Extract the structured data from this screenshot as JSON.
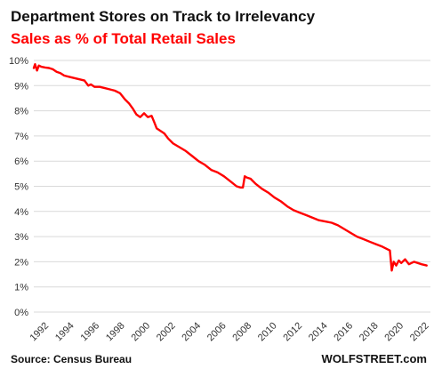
{
  "colors": {
    "line": "#ff0000",
    "grid": "#d9d9d9",
    "title": "#111111",
    "subtitle": "#ff0000"
  },
  "chart_data": {
    "type": "line",
    "title": "Department Stores on Track to Irrelevancy",
    "subtitle": "Sales as % of Total Retail Sales",
    "source": "Source: Census Bureau",
    "brand": "WOLFSTREET.com",
    "ylim": [
      0,
      10
    ],
    "xlim": [
      1992,
      2023.3
    ],
    "grid": "horizontal",
    "y_ticks": [
      {
        "value": 0,
        "label": "0%"
      },
      {
        "value": 1,
        "label": "1%"
      },
      {
        "value": 2,
        "label": "2%"
      },
      {
        "value": 3,
        "label": "3%"
      },
      {
        "value": 4,
        "label": "4%"
      },
      {
        "value": 5,
        "label": "5%"
      },
      {
        "value": 6,
        "label": "6%"
      },
      {
        "value": 7,
        "label": "7%"
      },
      {
        "value": 8,
        "label": "8%"
      },
      {
        "value": 9,
        "label": "9%"
      },
      {
        "value": 10,
        "label": "10%"
      }
    ],
    "x_ticks": [
      {
        "value": 1992,
        "label": "1992"
      },
      {
        "value": 1994,
        "label": "1994"
      },
      {
        "value": 1996,
        "label": "1996"
      },
      {
        "value": 1998,
        "label": "1998"
      },
      {
        "value": 2000,
        "label": "2000"
      },
      {
        "value": 2002,
        "label": "2002"
      },
      {
        "value": 2004,
        "label": "2004"
      },
      {
        "value": 2006,
        "label": "2006"
      },
      {
        "value": 2008,
        "label": "2008"
      },
      {
        "value": 2010,
        "label": "2010"
      },
      {
        "value": 2012,
        "label": "2012"
      },
      {
        "value": 2014,
        "label": "2014"
      },
      {
        "value": 2016,
        "label": "2016"
      },
      {
        "value": 2018,
        "label": "2018"
      },
      {
        "value": 2020,
        "label": "2020"
      },
      {
        "value": 2022,
        "label": "2022"
      }
    ],
    "series": [
      {
        "x": [
          1992.0,
          1992.1,
          1992.25,
          1992.4,
          1992.6,
          1992.9,
          1993.2,
          1993.5,
          1993.8,
          1994.1,
          1994.4,
          1994.8,
          1995.2,
          1995.6,
          1996.0,
          1996.3,
          1996.5,
          1996.8,
          1997.2,
          1997.6,
          1998.0,
          1998.4,
          1998.8,
          1999.2,
          1999.5,
          1999.8,
          2000.1,
          2000.4,
          2000.7,
          2001.0,
          2001.3,
          2001.5,
          2001.7,
          2002.0,
          2002.3,
          2002.6,
          2003.0,
          2003.5,
          2004.0,
          2004.5,
          2005.0,
          2005.5,
          2006.0,
          2006.5,
          2007.0,
          2007.5,
          2008.0,
          2008.3,
          2008.5,
          2008.65,
          2008.8,
          2009.1,
          2009.5,
          2010.0,
          2010.5,
          2011.0,
          2011.5,
          2012.0,
          2012.5,
          2013.0,
          2013.5,
          2014.0,
          2014.5,
          2015.0,
          2015.5,
          2016.0,
          2016.5,
          2017.0,
          2017.5,
          2018.0,
          2018.5,
          2019.0,
          2019.5,
          2019.9,
          2020.1,
          2020.25,
          2020.4,
          2020.6,
          2020.8,
          2021.0,
          2021.3,
          2021.6,
          2022.0,
          2022.3,
          2022.6,
          2023.0
        ],
        "y": [
          9.7,
          9.85,
          9.6,
          9.8,
          9.75,
          9.72,
          9.7,
          9.65,
          9.55,
          9.5,
          9.4,
          9.35,
          9.3,
          9.25,
          9.2,
          9.0,
          9.05,
          8.95,
          8.95,
          8.9,
          8.85,
          8.8,
          8.7,
          8.45,
          8.3,
          8.1,
          7.85,
          7.75,
          7.9,
          7.75,
          7.8,
          7.55,
          7.3,
          7.2,
          7.1,
          6.9,
          6.7,
          6.55,
          6.4,
          6.2,
          6.0,
          5.85,
          5.65,
          5.55,
          5.4,
          5.2,
          5.0,
          4.95,
          4.95,
          5.4,
          5.35,
          5.3,
          5.1,
          4.9,
          4.75,
          4.55,
          4.4,
          4.2,
          4.05,
          3.95,
          3.85,
          3.75,
          3.65,
          3.6,
          3.55,
          3.45,
          3.3,
          3.15,
          3.0,
          2.9,
          2.8,
          2.7,
          2.6,
          2.5,
          2.45,
          1.65,
          2.0,
          1.85,
          2.05,
          1.95,
          2.1,
          1.9,
          2.0,
          1.95,
          1.9,
          1.85
        ]
      }
    ]
  }
}
